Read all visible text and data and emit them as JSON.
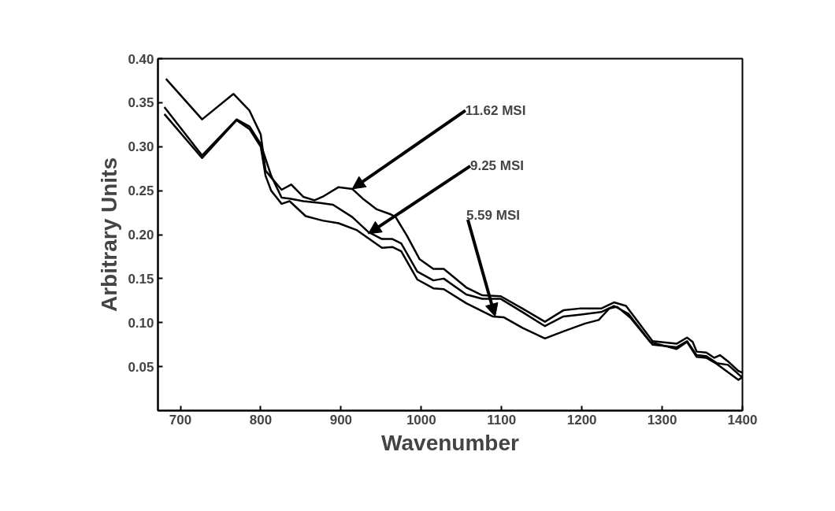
{
  "chart_data": {
    "type": "line",
    "xlabel": "Wavenumber",
    "ylabel": "Arbitrary Units",
    "xlim": [
      672,
      1400
    ],
    "ylim": [
      0,
      0.4
    ],
    "xticks": [
      700,
      800,
      900,
      1000,
      1100,
      1200,
      1300,
      1400
    ],
    "yticks": [
      0.05,
      {
        "value": 0.1,
        "label": "0.10"
      },
      0.15,
      {
        "value": 0.2,
        "label": "0.20"
      },
      0.25,
      {
        "value": 0.3,
        "label": "0.30"
      },
      0.35,
      {
        "value": 0.4,
        "label": "0.40"
      }
    ],
    "grid": false,
    "marker": "none",
    "line_style": "solid",
    "series": [
      {
        "color": "#000000",
        "x": [
          682,
          727,
          766,
          786,
          800,
          806,
          813,
          826,
          838,
          853,
          867,
          877,
          897,
          914,
          927,
          944,
          962,
          968,
          982,
          998,
          1015,
          1028,
          1056,
          1076,
          1099,
          1126,
          1154,
          1177,
          1197,
          1224,
          1240,
          1255,
          1265,
          1288,
          1318,
          1331,
          1338,
          1343,
          1355,
          1365,
          1372,
          1382,
          1395,
          1400
        ],
        "values": [
          0.377,
          0.331,
          0.36,
          0.341,
          0.314,
          0.273,
          0.265,
          0.251,
          0.257,
          0.243,
          0.239,
          0.243,
          0.254,
          0.252,
          0.241,
          0.229,
          0.223,
          0.22,
          0.199,
          0.172,
          0.161,
          0.161,
          0.14,
          0.131,
          0.13,
          0.116,
          0.101,
          0.114,
          0.116,
          0.116,
          0.123,
          0.119,
          0.107,
          0.079,
          0.076,
          0.083,
          0.078,
          0.067,
          0.066,
          0.06,
          0.063,
          0.056,
          0.045,
          0.043
        ]
      },
      {
        "color": "#000000",
        "x": [
          680,
          727,
          770,
          786,
          800,
          813,
          826,
          836,
          853,
          874,
          890,
          914,
          934,
          951,
          964,
          975,
          995,
          1015,
          1028,
          1056,
          1076,
          1099,
          1126,
          1154,
          1177,
          1197,
          1224,
          1240,
          1258,
          1288,
          1318,
          1331,
          1343,
          1355,
          1368,
          1382,
          1398,
          1400
        ],
        "values": [
          0.345,
          0.29,
          0.331,
          0.323,
          0.303,
          0.267,
          0.242,
          0.241,
          0.238,
          0.236,
          0.234,
          0.22,
          0.203,
          0.195,
          0.195,
          0.19,
          0.158,
          0.148,
          0.15,
          0.132,
          0.127,
          0.127,
          0.112,
          0.096,
          0.107,
          0.109,
          0.112,
          0.119,
          0.11,
          0.075,
          0.072,
          0.079,
          0.063,
          0.062,
          0.054,
          0.052,
          0.039,
          0.039
        ]
      },
      {
        "color": "#000000",
        "x": [
          680,
          727,
          770,
          786,
          800,
          806,
          813,
          826,
          836,
          856,
          877,
          897,
          920,
          951,
          964,
          975,
          995,
          1015,
          1028,
          1056,
          1089,
          1103,
          1126,
          1154,
          1177,
          1204,
          1221,
          1234,
          1244,
          1261,
          1285,
          1318,
          1331,
          1343,
          1355,
          1368,
          1395,
          1400
        ],
        "values": [
          0.337,
          0.287,
          0.33,
          0.32,
          0.3,
          0.267,
          0.25,
          0.235,
          0.238,
          0.221,
          0.216,
          0.213,
          0.205,
          0.185,
          0.186,
          0.181,
          0.149,
          0.139,
          0.138,
          0.122,
          0.107,
          0.106,
          0.094,
          0.082,
          0.09,
          0.099,
          0.103,
          0.116,
          0.118,
          0.105,
          0.078,
          0.07,
          0.078,
          0.061,
          0.06,
          0.053,
          0.035,
          0.038
        ]
      }
    ],
    "annotations": [
      {
        "text": "11.62 MSI",
        "x": 914,
        "y": 0.252
      },
      {
        "text": "9.25 MSI",
        "x": 934,
        "y": 0.201
      },
      {
        "text": "5.59 MSI",
        "x": 1092,
        "y": 0.107
      }
    ]
  }
}
